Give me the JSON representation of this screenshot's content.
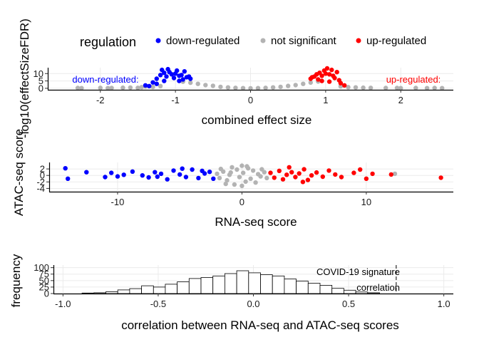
{
  "legend": {
    "title": "regulation",
    "items": [
      {
        "label": "down-regulated",
        "color": "#0000ff"
      },
      {
        "label": "not significant",
        "color": "#b3b3b3"
      },
      {
        "label": "up-regulated",
        "color": "#ff0000"
      }
    ]
  },
  "chart_data": [
    {
      "type": "scatter",
      "panel": "volcano",
      "xlabel": "combined effect size",
      "ylabel": "-log10(effectSizeFDR)",
      "xlim": [
        -2.7,
        2.7
      ],
      "ylim": [
        -1,
        14
      ],
      "xticks": [
        -2,
        -1,
        0,
        1,
        2
      ],
      "yticks": [
        0,
        5,
        10
      ],
      "grid": true,
      "annotations": [
        {
          "text": "down-regulated:",
          "color": "#0000ff",
          "x": -2.05,
          "y": 6.5
        },
        {
          "text": "up-regulated:",
          "color": "#ff0000",
          "x": 2.05,
          "y": 6.5
        }
      ],
      "series": [
        {
          "name": "not significant",
          "color": "#b3b3b3",
          "points": [
            [
              -2.3,
              0.2
            ],
            [
              -2.25,
              0.1
            ],
            [
              -2.0,
              0.3
            ],
            [
              -1.9,
              0.1
            ],
            [
              -1.85,
              0.2
            ],
            [
              -1.7,
              0.4
            ],
            [
              -1.6,
              0.5
            ],
            [
              -1.5,
              0.3
            ],
            [
              -1.45,
              0.8
            ],
            [
              -1.4,
              1.2
            ],
            [
              -1.3,
              0.9
            ],
            [
              -1.2,
              1.5
            ],
            [
              -0.9,
              4.5
            ],
            [
              -0.8,
              3.8
            ],
            [
              -0.7,
              3.0
            ],
            [
              -0.6,
              2.2
            ],
            [
              -0.5,
              1.7
            ],
            [
              -0.4,
              1.0
            ],
            [
              -0.3,
              0.6
            ],
            [
              -0.2,
              0.3
            ],
            [
              -0.1,
              0.1
            ],
            [
              0.0,
              0.0
            ],
            [
              0.1,
              0.1
            ],
            [
              0.2,
              0.3
            ],
            [
              0.3,
              0.6
            ],
            [
              0.4,
              1.0
            ],
            [
              0.5,
              1.6
            ],
            [
              0.6,
              2.2
            ],
            [
              0.7,
              3.0
            ],
            [
              0.8,
              3.9
            ],
            [
              0.9,
              4.6
            ],
            [
              1.2,
              1.3
            ],
            [
              1.3,
              0.8
            ],
            [
              1.4,
              0.6
            ],
            [
              1.5,
              0.4
            ],
            [
              1.6,
              0.3
            ],
            [
              1.8,
              0.2
            ],
            [
              1.95,
              0.2
            ],
            [
              2.0,
              0.1
            ],
            [
              2.2,
              0.2
            ],
            [
              2.35,
              0.1
            ],
            [
              2.45,
              0.2
            ],
            [
              2.55,
              0.1
            ]
          ]
        },
        {
          "name": "down-regulated",
          "color": "#0000ff",
          "points": [
            [
              -1.4,
              2.0
            ],
            [
              -1.35,
              1.5
            ],
            [
              -1.3,
              4.0
            ],
            [
              -1.25,
              6.5
            ],
            [
              -1.2,
              9.0
            ],
            [
              -1.18,
              12.5
            ],
            [
              -1.15,
              10.5
            ],
            [
              -1.12,
              8.0
            ],
            [
              -1.1,
              13.0
            ],
            [
              -1.08,
              11.0
            ],
            [
              -1.05,
              9.5
            ],
            [
              -1.02,
              7.0
            ],
            [
              -1.0,
              10.0
            ],
            [
              -0.98,
              12.0
            ],
            [
              -0.95,
              8.5
            ],
            [
              -0.92,
              9.0
            ],
            [
              -0.9,
              6.0
            ],
            [
              -0.88,
              11.5
            ],
            [
              -0.85,
              7.5
            ],
            [
              -0.82,
              8.0
            ],
            [
              -0.8,
              6.5
            ],
            [
              -1.25,
              3.0
            ],
            [
              -1.15,
              5.0
            ],
            [
              -0.95,
              5.0
            ]
          ]
        },
        {
          "name": "up-regulated",
          "color": "#ff0000",
          "points": [
            [
              0.8,
              6.5
            ],
            [
              0.82,
              7.5
            ],
            [
              0.85,
              8.0
            ],
            [
              0.88,
              9.5
            ],
            [
              0.9,
              6.0
            ],
            [
              0.92,
              10.5
            ],
            [
              0.95,
              8.5
            ],
            [
              0.98,
              12.0
            ],
            [
              1.0,
              10.0
            ],
            [
              1.02,
              13.5
            ],
            [
              1.05,
              9.5
            ],
            [
              1.08,
              12.5
            ],
            [
              1.1,
              8.5
            ],
            [
              1.12,
              7.0
            ],
            [
              1.15,
              11.0
            ],
            [
              1.18,
              5.5
            ],
            [
              1.2,
              3.5
            ],
            [
              1.25,
              2.0
            ],
            [
              1.05,
              4.5
            ],
            [
              0.95,
              5.0
            ]
          ]
        }
      ]
    },
    {
      "type": "scatter",
      "panel": "rna-atac",
      "xlabel": "RNA-seq score",
      "ylabel": "ATAC-seq score",
      "xlim": [
        -15.5,
        17.0
      ],
      "ylim": [
        -5,
        4
      ],
      "xticks": [
        -10,
        0,
        10
      ],
      "yticks": [
        -4,
        -2,
        0,
        2
      ],
      "grid": true,
      "series": [
        {
          "name": "not significant",
          "color": "#b3b3b3",
          "points": [
            [
              -2.0,
              0.5
            ],
            [
              -1.8,
              -0.8
            ],
            [
              -1.5,
              1.2
            ],
            [
              -1.2,
              -1.5
            ],
            [
              -1.0,
              0.2
            ],
            [
              -0.8,
              2.5
            ],
            [
              -0.6,
              -2.8
            ],
            [
              -0.4,
              1.8
            ],
            [
              -0.2,
              -0.5
            ],
            [
              0.0,
              3.0
            ],
            [
              0.0,
              -3.2
            ],
            [
              0.1,
              0.8
            ],
            [
              0.3,
              -1.9
            ],
            [
              0.5,
              2.2
            ],
            [
              0.7,
              -1.0
            ],
            [
              0.9,
              1.5
            ],
            [
              1.1,
              -2.2
            ],
            [
              1.3,
              0.4
            ],
            [
              1.5,
              -0.3
            ],
            [
              1.8,
              1.0
            ],
            [
              2.0,
              -0.8
            ],
            [
              -1.3,
              -2.6
            ],
            [
              -0.9,
              0.9
            ],
            [
              0.4,
              2.8
            ],
            [
              1.6,
              1.9
            ],
            [
              -1.7,
              2.0
            ],
            [
              12.3,
              0.5
            ]
          ]
        },
        {
          "name": "down-regulated",
          "color": "#0000ff",
          "points": [
            [
              -14.2,
              2.2
            ],
            [
              -14.0,
              -1.0
            ],
            [
              -12.5,
              1.0
            ],
            [
              -11.0,
              -0.5
            ],
            [
              -10.5,
              0.8
            ],
            [
              -10.0,
              -0.3
            ],
            [
              -9.5,
              0.2
            ],
            [
              -8.8,
              1.2
            ],
            [
              -8.0,
              0.0
            ],
            [
              -7.5,
              -0.6
            ],
            [
              -7.0,
              1.0
            ],
            [
              -6.5,
              0.5
            ],
            [
              -6.0,
              -1.2
            ],
            [
              -5.5,
              1.5
            ],
            [
              -5.0,
              0.3
            ],
            [
              -4.5,
              -0.5
            ],
            [
              -4.0,
              1.8
            ],
            [
              -3.5,
              -0.8
            ],
            [
              -3.0,
              0.6
            ],
            [
              -2.6,
              1.1
            ],
            [
              -2.3,
              -1.0
            ],
            [
              -6.8,
              -0.4
            ],
            [
              -4.8,
              2.1
            ],
            [
              -3.2,
              1.4
            ]
          ]
        },
        {
          "name": "up-regulated",
          "color": "#ff0000",
          "points": [
            [
              2.3,
              0.8
            ],
            [
              2.6,
              -0.7
            ],
            [
              3.0,
              1.4
            ],
            [
              3.3,
              -1.2
            ],
            [
              3.6,
              0.2
            ],
            [
              4.0,
              1.0
            ],
            [
              4.3,
              -0.5
            ],
            [
              4.6,
              0.6
            ],
            [
              5.0,
              1.9
            ],
            [
              5.3,
              -1.4
            ],
            [
              5.6,
              0.0
            ],
            [
              6.0,
              0.9
            ],
            [
              6.5,
              -0.4
            ],
            [
              7.0,
              1.5
            ],
            [
              7.5,
              0.3
            ],
            [
              8.0,
              -0.5
            ],
            [
              9.0,
              0.8
            ],
            [
              9.5,
              1.8
            ],
            [
              10.0,
              -1.0
            ],
            [
              10.5,
              0.5
            ],
            [
              12.0,
              0.3
            ],
            [
              16.0,
              -0.7
            ],
            [
              3.8,
              2.5
            ],
            [
              4.9,
              -2.0
            ]
          ]
        }
      ]
    },
    {
      "type": "bar",
      "panel": "histogram",
      "xlabel": "correlation between RNA-seq and ATAC-seq scores",
      "ylabel": "frequency",
      "xlim": [
        -1.05,
        1.05
      ],
      "ylim": [
        0,
        110
      ],
      "xticks": [
        -1.0,
        -0.5,
        0.0,
        0.5,
        1.0
      ],
      "yticks": [
        0,
        25,
        50,
        75,
        100
      ],
      "grid": true,
      "bin_width": 0.0625,
      "bins_start": -0.9,
      "values": [
        2,
        3,
        7,
        14,
        19,
        30,
        25,
        36,
        45,
        58,
        62,
        68,
        77,
        88,
        80,
        73,
        68,
        56,
        48,
        40,
        32,
        20,
        13,
        6,
        3
      ],
      "annotations": [
        {
          "text": "COVID-19 signature",
          "x": 0.75
        },
        {
          "text": "correlation",
          "x": 0.75
        }
      ],
      "vline": 0.75
    }
  ]
}
